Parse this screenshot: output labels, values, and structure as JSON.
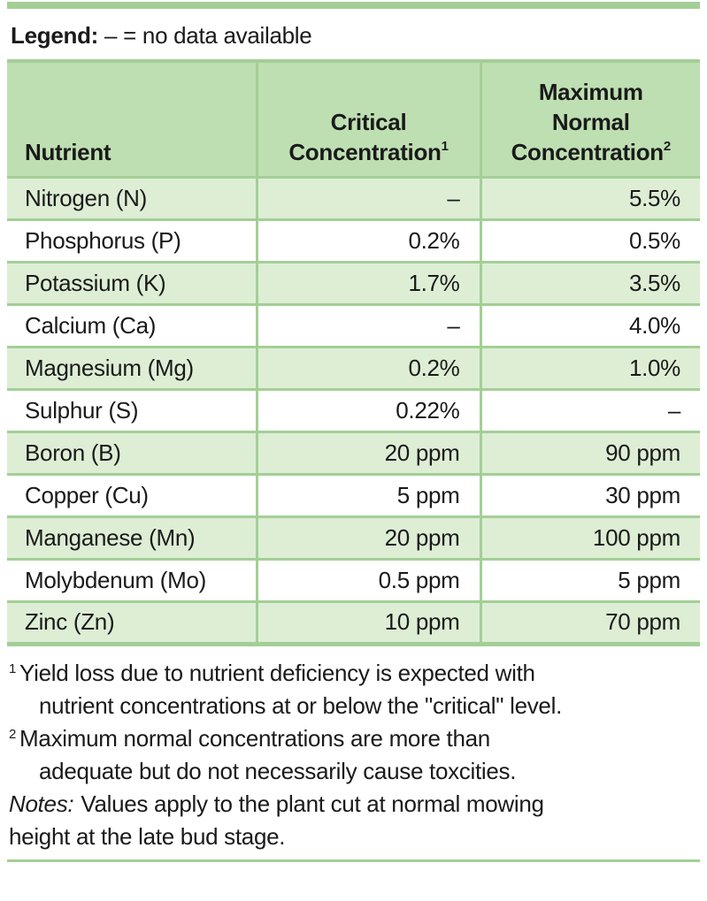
{
  "colors": {
    "accent_green": "#a3cf96",
    "header_fill": "#bedfb2",
    "band_fill": "#ddeed5",
    "text": "#1a1a1a"
  },
  "legend": {
    "label": "Legend:",
    "text": "– = no data available"
  },
  "table": {
    "header": {
      "col1": "Nutrient",
      "col2_line1": "Critical",
      "col2_line2": "Concentration",
      "col2_sup": "1",
      "col3_line1": "Maximum",
      "col3_line2": "Normal",
      "col3_line3": "Concentration",
      "col3_sup": "2"
    },
    "rows": [
      {
        "nutrient": "Nitrogen (N)",
        "critical": "–",
        "maximum": "5.5%"
      },
      {
        "nutrient": "Phosphorus (P)",
        "critical": "0.2%",
        "maximum": "0.5%"
      },
      {
        "nutrient": "Potassium (K)",
        "critical": "1.7%",
        "maximum": "3.5%"
      },
      {
        "nutrient": "Calcium (Ca)",
        "critical": "–",
        "maximum": "4.0%"
      },
      {
        "nutrient": "Magnesium (Mg)",
        "critical": "0.2%",
        "maximum": "1.0%"
      },
      {
        "nutrient": "Sulphur (S)",
        "critical": "0.22%",
        "maximum": "–"
      },
      {
        "nutrient": "Boron (B)",
        "critical": "20 ppm",
        "maximum": "90 ppm"
      },
      {
        "nutrient": "Copper (Cu)",
        "critical": "5 ppm",
        "maximum": "30 ppm"
      },
      {
        "nutrient": "Manganese (Mn)",
        "critical": "20 ppm",
        "maximum": "100 ppm"
      },
      {
        "nutrient": "Molybdenum (Mo)",
        "critical": "0.5 ppm",
        "maximum": "5 ppm"
      },
      {
        "nutrient": "Zinc (Zn)",
        "critical": "10 ppm",
        "maximum": "70 ppm"
      }
    ]
  },
  "footnotes": [
    {
      "sup": "1",
      "line1": "Yield loss due to nutrient deficiency is expected with",
      "line2": "nutrient concentrations at or below the \"critical\" level."
    },
    {
      "sup": "2",
      "line1": "Maximum normal concentrations are more than",
      "line2": "adequate but do not necessarily cause toxcities."
    }
  ],
  "notes": {
    "label": "Notes:",
    "line1": "Values apply to the plant cut at normal mowing",
    "line2": "height at the late bud stage."
  }
}
